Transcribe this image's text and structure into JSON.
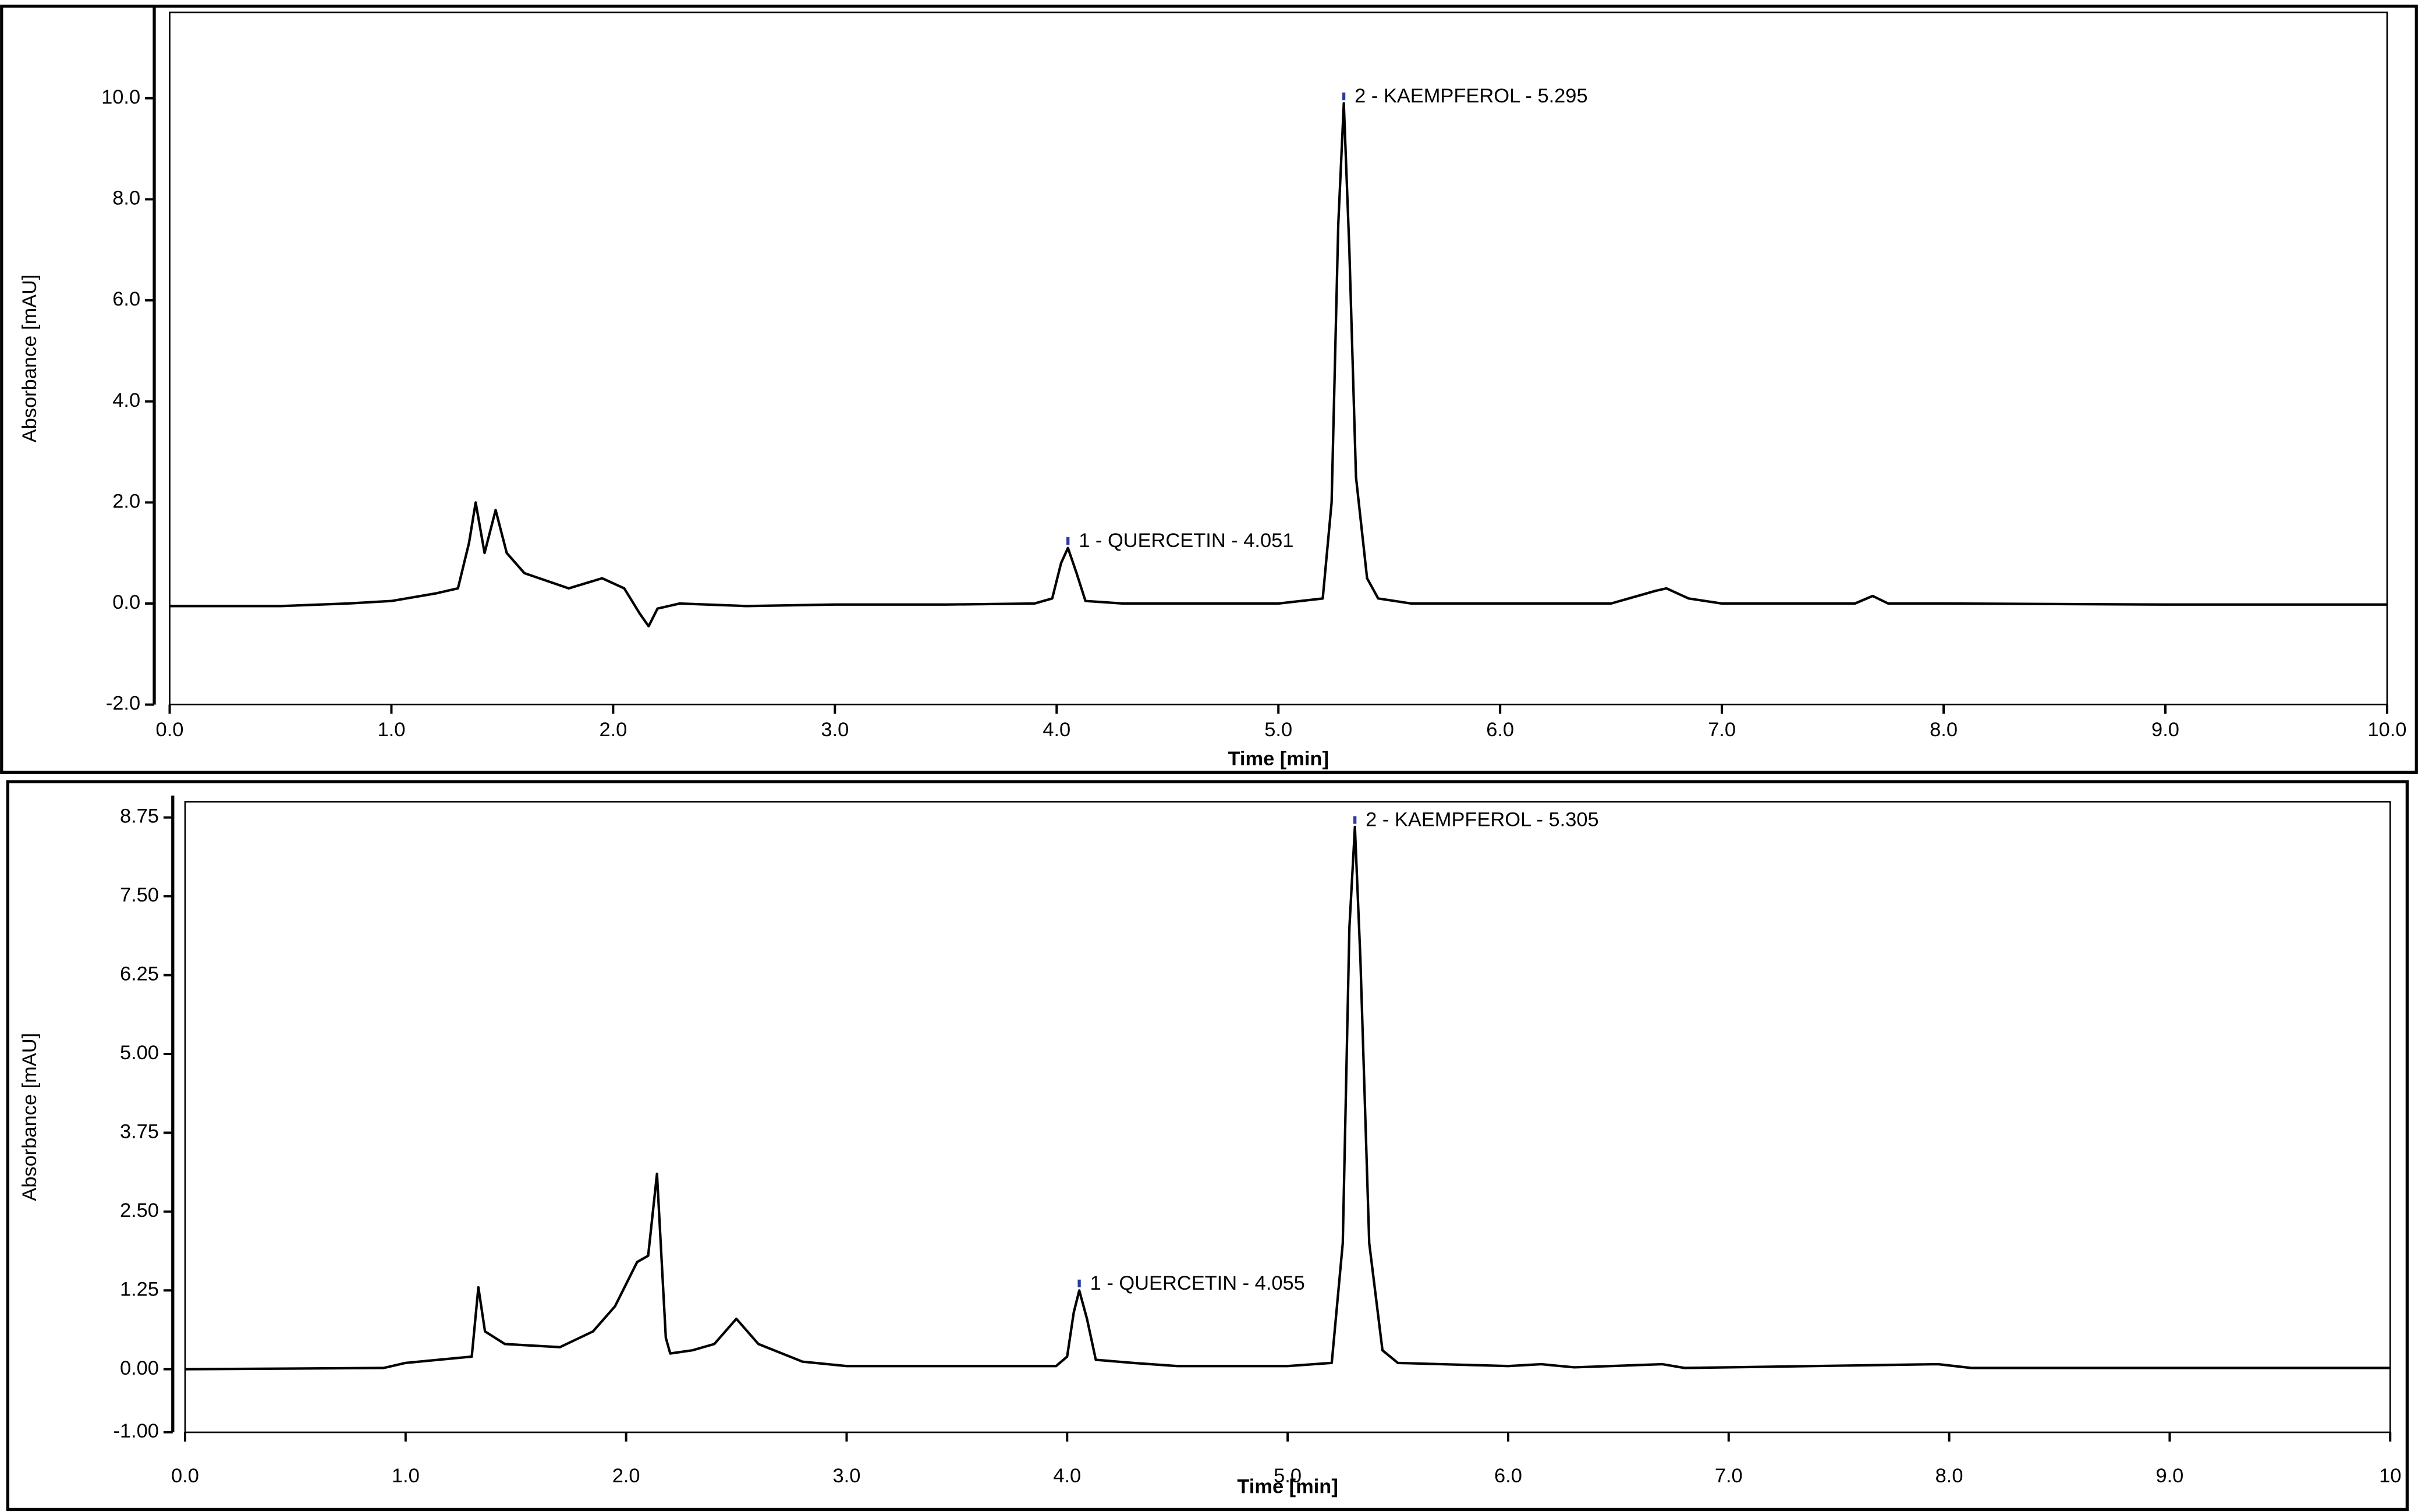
{
  "chart_data": [
    {
      "type": "line",
      "xlabel": "Time [min]",
      "ylabel": "Absorbance [mAU]",
      "xlim": [
        0,
        10
      ],
      "ylim": [
        -2,
        11.7
      ],
      "xticks": [
        {
          "value": 0,
          "label": "0.0"
        },
        {
          "value": 1,
          "label": "1.0"
        },
        {
          "value": 2,
          "label": "2.0"
        },
        {
          "value": 3,
          "label": "3.0"
        },
        {
          "value": 4,
          "label": "4.0"
        },
        {
          "value": 5,
          "label": "5.0"
        },
        {
          "value": 6,
          "label": "6.0"
        },
        {
          "value": 7,
          "label": "7.0"
        },
        {
          "value": 8,
          "label": "8.0"
        },
        {
          "value": 9,
          "label": "9.0"
        },
        {
          "value": 10,
          "label": "10.0"
        }
      ],
      "yticks": [
        {
          "value": -2,
          "label": "-2.0"
        },
        {
          "value": 0,
          "label": "0.0"
        },
        {
          "value": 2,
          "label": "2.0"
        },
        {
          "value": 4,
          "label": "4.0"
        },
        {
          "value": 6,
          "label": "6.0"
        },
        {
          "value": 8,
          "label": "8.0"
        },
        {
          "value": 10,
          "label": "10.0"
        }
      ],
      "x": [
        0.0,
        0.5,
        0.8,
        1.0,
        1.2,
        1.3,
        1.35,
        1.38,
        1.42,
        1.47,
        1.52,
        1.6,
        1.8,
        1.95,
        2.05,
        2.12,
        2.16,
        2.2,
        2.3,
        2.6,
        3.0,
        3.5,
        3.9,
        3.98,
        4.02,
        4.051,
        4.09,
        4.13,
        4.3,
        5.0,
        5.2,
        5.24,
        5.27,
        5.295,
        5.32,
        5.35,
        5.4,
        5.45,
        5.6,
        6.0,
        6.5,
        6.7,
        6.75,
        6.85,
        7.0,
        7.6,
        7.68,
        7.75,
        8.0,
        9.0,
        10.0
      ],
      "series": [
        {
          "color": "#000000",
          "values": [
            -0.05,
            -0.05,
            0.0,
            0.05,
            0.2,
            0.3,
            1.2,
            2.0,
            1.0,
            1.85,
            1.0,
            0.6,
            0.3,
            0.5,
            0.3,
            -0.2,
            -0.45,
            -0.1,
            0.0,
            -0.05,
            -0.02,
            -0.02,
            0.0,
            0.1,
            0.8,
            1.1,
            0.6,
            0.05,
            0.0,
            0.0,
            0.1,
            2.0,
            7.5,
            9.9,
            7.0,
            2.5,
            0.5,
            0.1,
            0.0,
            0.0,
            0.0,
            0.25,
            0.3,
            0.1,
            0.0,
            0.0,
            0.15,
            0.0,
            0.0,
            -0.02,
            -0.02
          ]
        }
      ],
      "annotations": [
        {
          "text": "1 - QUERCETIN - 4.051",
          "x": 4.051,
          "y": 1.1
        },
        {
          "text": "2 - KAEMPFEROL - 5.295",
          "x": 5.295,
          "y": 9.9
        }
      ]
    },
    {
      "type": "line",
      "xlabel": "Time [min]",
      "ylabel": "Absorbance [mAU]",
      "xlim": [
        0,
        10
      ],
      "ylim": [
        -1,
        9
      ],
      "xticks": [
        {
          "value": 0,
          "label": "0.0"
        },
        {
          "value": 1,
          "label": "1.0"
        },
        {
          "value": 2,
          "label": "2.0"
        },
        {
          "value": 3,
          "label": "3.0"
        },
        {
          "value": 4,
          "label": "4.0"
        },
        {
          "value": 5,
          "label": "5.0"
        },
        {
          "value": 6,
          "label": "6.0"
        },
        {
          "value": 7,
          "label": "7.0"
        },
        {
          "value": 8,
          "label": "8.0"
        },
        {
          "value": 9,
          "label": "9.0"
        },
        {
          "value": 10,
          "label": "10"
        }
      ],
      "yticks": [
        {
          "value": -1,
          "label": "-1.00"
        },
        {
          "value": 0,
          "label": "0.00"
        },
        {
          "value": 1.25,
          "label": "1.25"
        },
        {
          "value": 2.5,
          "label": "2.50"
        },
        {
          "value": 3.75,
          "label": "3.75"
        },
        {
          "value": 5,
          "label": "5.00"
        },
        {
          "value": 6.25,
          "label": "6.25"
        },
        {
          "value": 7.5,
          "label": "7.50"
        },
        {
          "value": 8.75,
          "label": "8.75"
        }
      ],
      "x": [
        0.0,
        0.9,
        1.0,
        1.3,
        1.33,
        1.36,
        1.45,
        1.7,
        1.85,
        1.95,
        2.05,
        2.1,
        2.14,
        2.18,
        2.2,
        2.3,
        2.4,
        2.5,
        2.6,
        2.8,
        3.0,
        3.5,
        3.95,
        4.0,
        4.03,
        4.055,
        4.09,
        4.13,
        4.3,
        4.5,
        5.0,
        5.2,
        5.25,
        5.28,
        5.305,
        5.33,
        5.37,
        5.43,
        5.5,
        6.0,
        6.15,
        6.3,
        6.7,
        6.8,
        7.95,
        8.1,
        10.0
      ],
      "series": [
        {
          "color": "#000000",
          "values": [
            0.0,
            0.02,
            0.1,
            0.2,
            1.3,
            0.6,
            0.4,
            0.35,
            0.6,
            1.0,
            1.7,
            1.8,
            3.1,
            0.5,
            0.25,
            0.3,
            0.4,
            0.8,
            0.4,
            0.12,
            0.05,
            0.05,
            0.05,
            0.2,
            0.9,
            1.25,
            0.8,
            0.15,
            0.1,
            0.05,
            0.05,
            0.1,
            2.0,
            7.0,
            8.6,
            6.5,
            2.0,
            0.3,
            0.1,
            0.05,
            0.08,
            0.03,
            0.08,
            0.02,
            0.08,
            0.02,
            0.02
          ]
        }
      ],
      "annotations": [
        {
          "text": "1 - QUERCETIN - 4.055",
          "x": 4.055,
          "y": 1.25
        },
        {
          "text": "2 - KAEMPFEROL - 5.305",
          "x": 5.305,
          "y": 8.6
        }
      ]
    }
  ]
}
